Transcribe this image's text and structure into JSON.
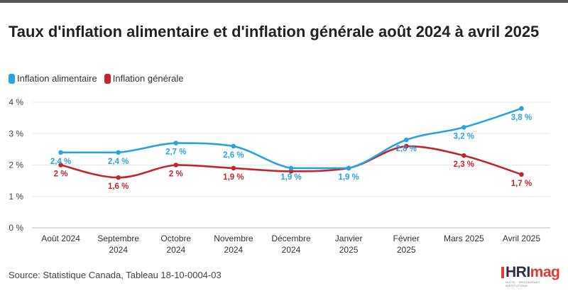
{
  "title": "Taux d'inflation alimentaire et d'inflation générale août 2024 à avril 2025",
  "source": "Source: Statistique Canada, Tableau 18-10-0004-03",
  "logo": {
    "part1": "HRI",
    "part2": "mag",
    "tagline": "HOTEL · RESTAURANT · INSTITUTIONS"
  },
  "chart_data": {
    "type": "line",
    "categories": [
      "Août 2024",
      "Septembre 2024",
      "Octobre 2024",
      "Novembre 2024",
      "Décembre 2024",
      "Janvier 2025",
      "Février 2025",
      "Mars 2025",
      "Avril 2025"
    ],
    "y_ticks": [
      "0 %",
      "1 %",
      "2 %",
      "3 %",
      "4 %"
    ],
    "ylim": [
      0,
      4
    ],
    "grid": true,
    "legend_position": "top-left",
    "series": [
      {
        "name": "Inflation alimentaire",
        "color": "#29a3e0",
        "values": [
          2.4,
          2.4,
          2.7,
          2.6,
          1.9,
          1.9,
          2.8,
          3.2,
          3.8
        ],
        "labels": [
          "2,4 %",
          "2,4 %",
          "2,7 %",
          "2,6 %",
          "1,9 %",
          "1,9 %",
          "2,8 %",
          "3,2 %",
          "3,8 %"
        ]
      },
      {
        "name": "Inflation générale",
        "color": "#c0272d",
        "values": [
          2.0,
          1.6,
          2.0,
          1.9,
          1.8,
          1.9,
          2.6,
          2.3,
          1.7
        ],
        "labels": [
          "2 %",
          "1,6 %",
          "2 %",
          "1,9 %",
          "",
          "",
          "",
          "2,3 %",
          "1,7 %"
        ]
      }
    ]
  }
}
